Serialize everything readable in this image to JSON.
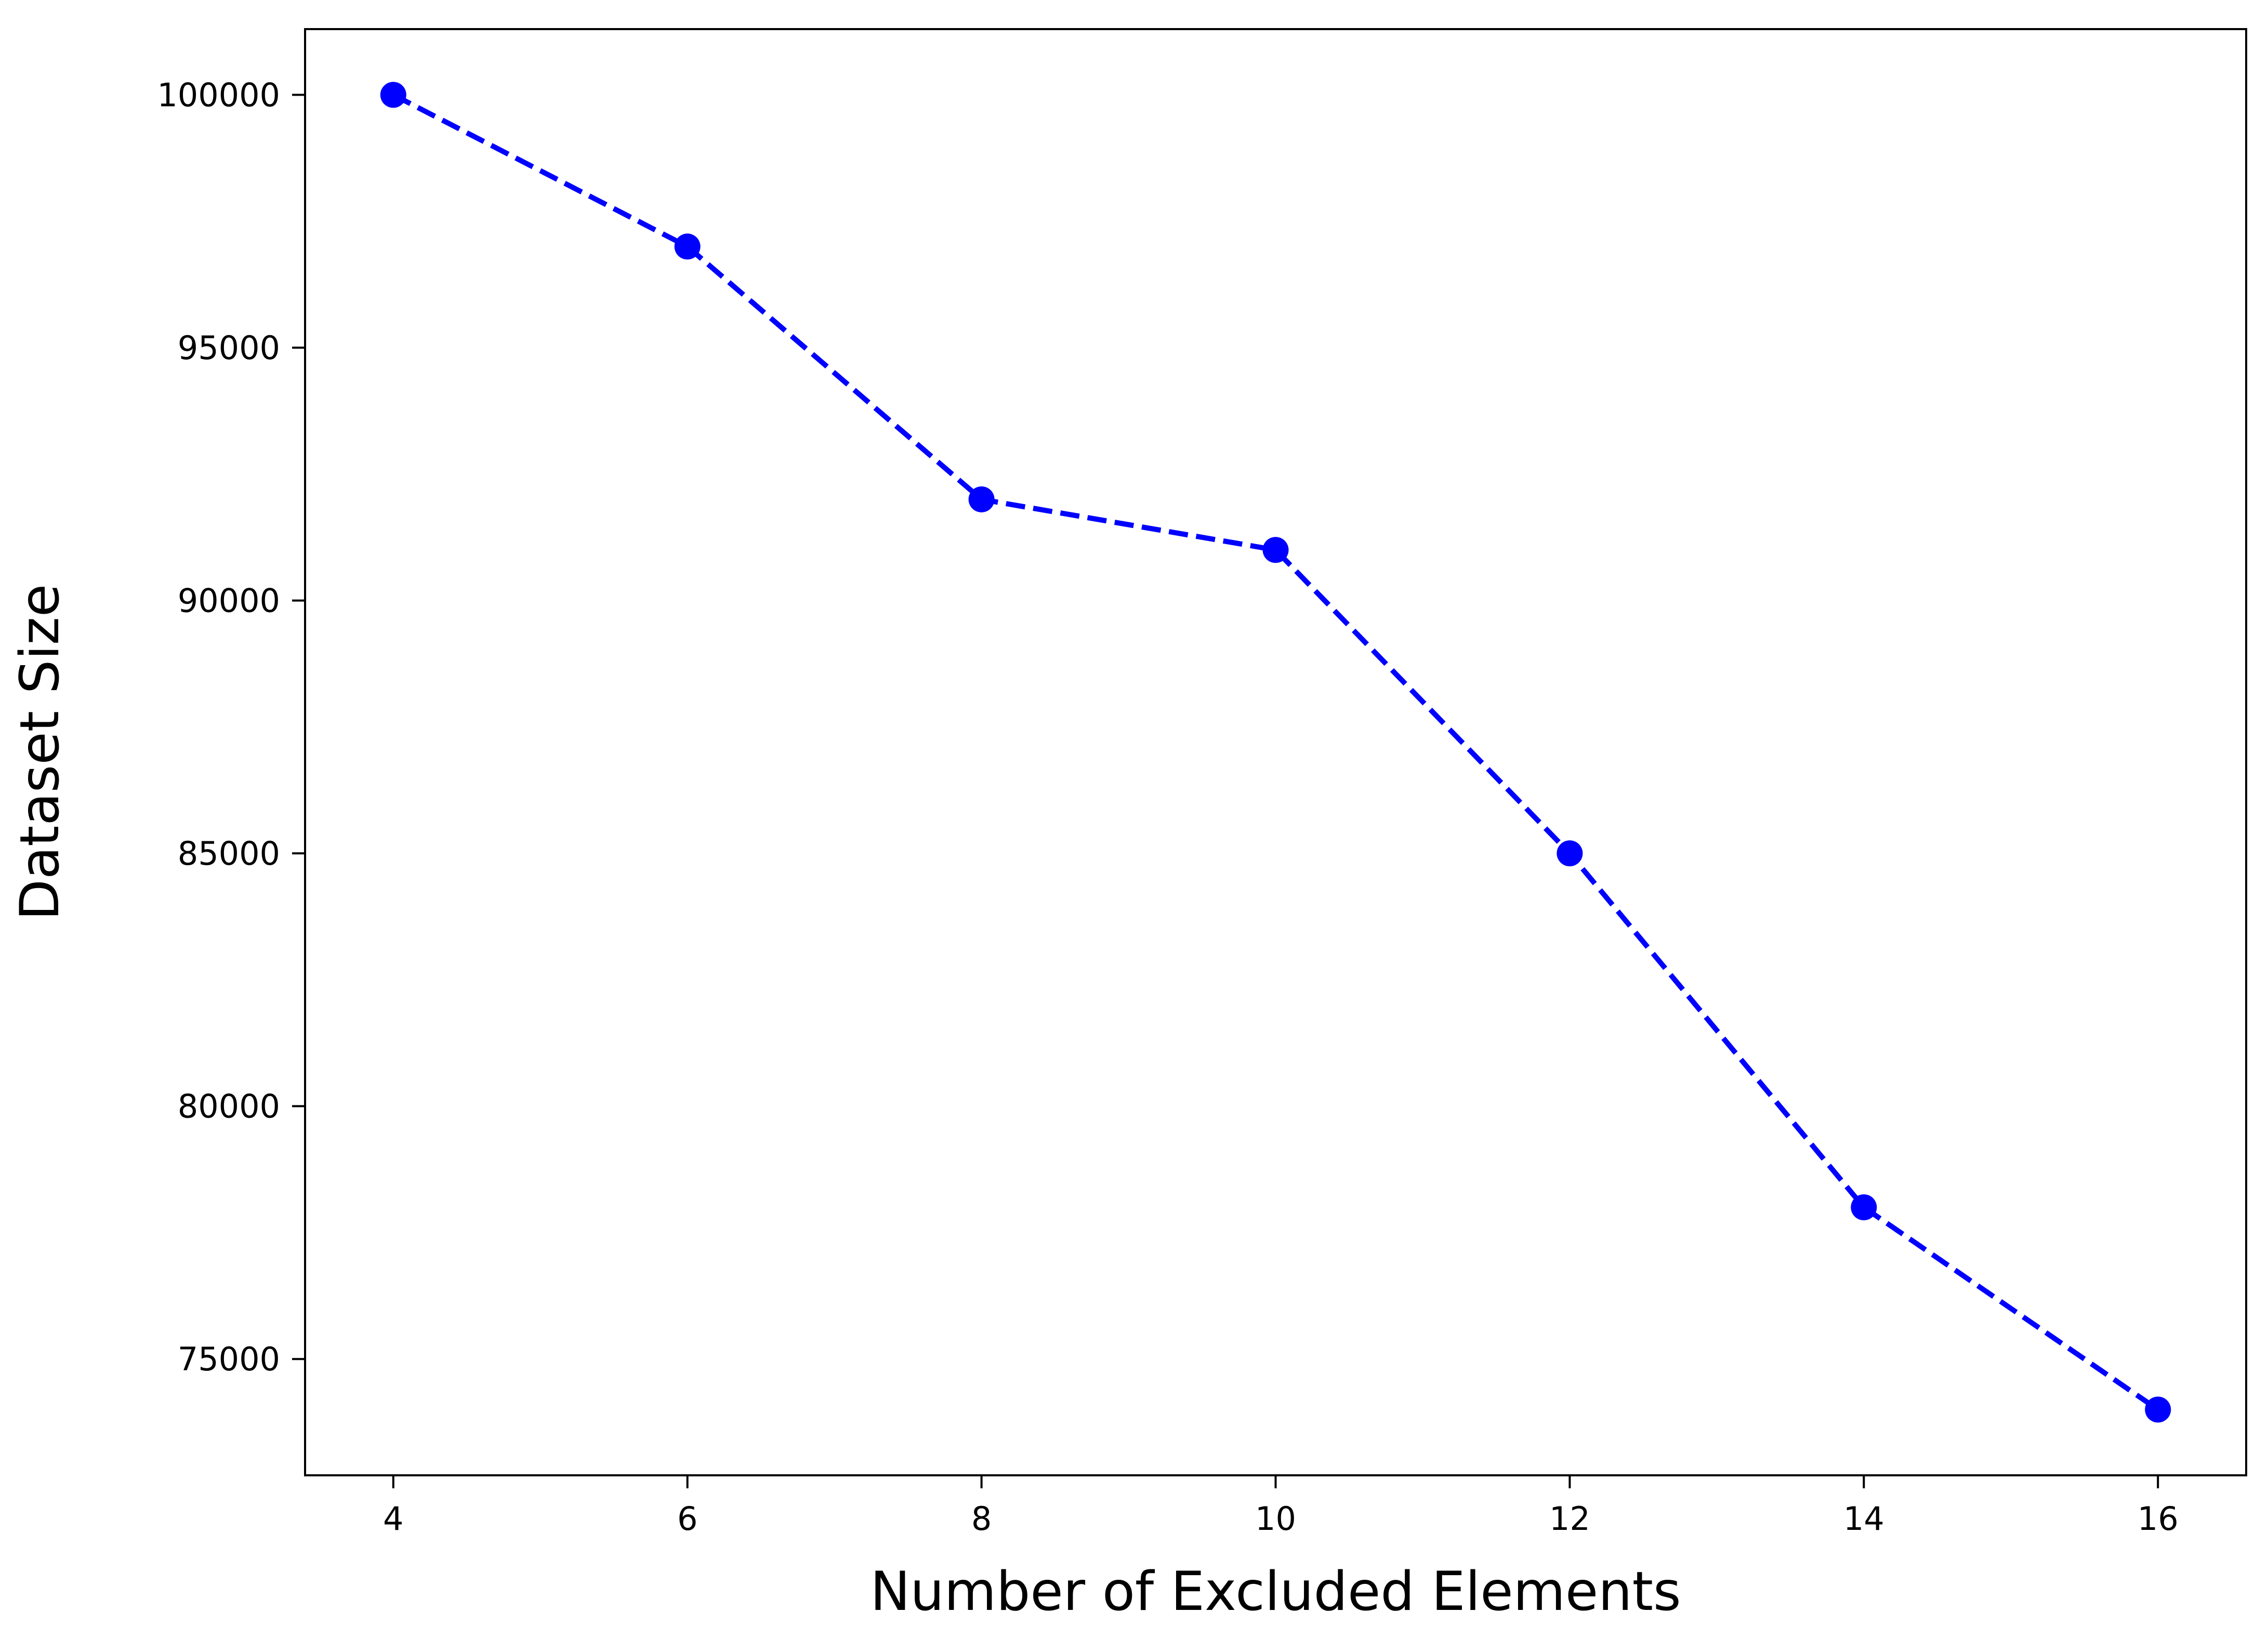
{
  "chart_data": {
    "type": "line",
    "title": "",
    "xlabel": "Number of Excluded Elements",
    "ylabel": "Dataset Size",
    "x": [
      4,
      6,
      8,
      10,
      12,
      14,
      16
    ],
    "series": [
      {
        "values": [
          100000,
          97000,
          92000,
          91000,
          85000,
          78000,
          74000
        ],
        "color": "#0000ff",
        "line_style": "dashed",
        "marker": "circle"
      }
    ],
    "xlim": [
      3.4,
      16.6
    ],
    "ylim": [
      72700,
      101300
    ],
    "xticks": [
      4,
      6,
      8,
      10,
      12,
      14,
      16
    ],
    "yticks": [
      75000,
      80000,
      85000,
      90000,
      95000,
      100000
    ],
    "xtick_labels": [
      "4",
      "6",
      "8",
      "10",
      "12",
      "14",
      "16"
    ],
    "ytick_labels": [
      "75000",
      "80000",
      "85000",
      "90000",
      "95000",
      "100000"
    ],
    "grid": false,
    "legend": "none"
  }
}
